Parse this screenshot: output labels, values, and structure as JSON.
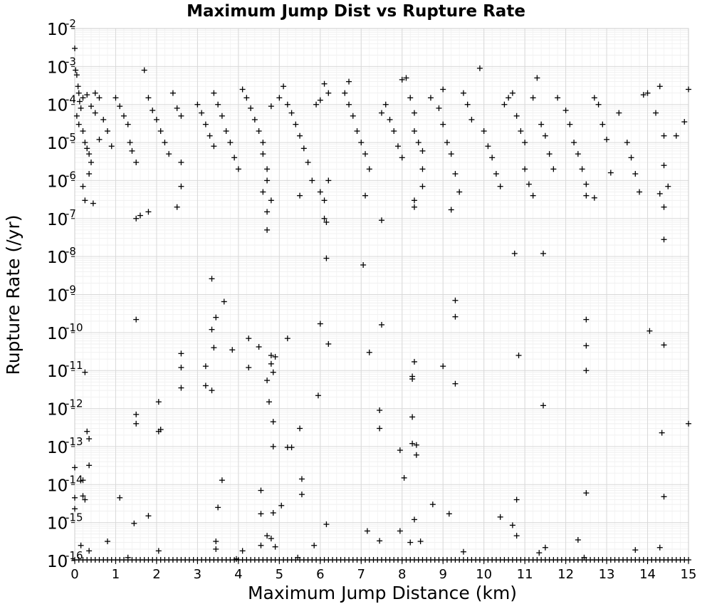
{
  "chart_data": {
    "type": "scatter",
    "title": "Maximum Jump Dist vs Rupture Rate",
    "xlabel": "Maximum Jump Distance (km)",
    "ylabel": "Rupture Rate (/yr)",
    "xlim": [
      0,
      15
    ],
    "ylim": [
      1e-16,
      0.01
    ],
    "yscale": "log",
    "grid": true,
    "legend": "none",
    "marker": "plus",
    "color": "#000000",
    "x_ticks": [
      0,
      1,
      2,
      3,
      4,
      5,
      6,
      7,
      8,
      9,
      10,
      11,
      12,
      13,
      14,
      15
    ],
    "y_ticks": [
      {
        "base": "10",
        "exp": "-16",
        "value": 1e-16
      },
      {
        "base": "10",
        "exp": "-15",
        "value": 1e-15
      },
      {
        "base": "10",
        "exp": "-14",
        "value": 1e-14
      },
      {
        "base": "10",
        "exp": "-13",
        "value": 1e-13
      },
      {
        "base": "10",
        "exp": "-12",
        "value": 1e-12
      },
      {
        "base": "10",
        "exp": "-11",
        "value": 1e-11
      },
      {
        "base": "10",
        "exp": "-10",
        "value": 1e-10
      },
      {
        "base": "10",
        "exp": "-9",
        "value": 1e-09
      },
      {
        "base": "10",
        "exp": "-8",
        "value": 1e-08
      },
      {
        "base": "10",
        "exp": "-7",
        "value": 1e-07
      },
      {
        "base": "10",
        "exp": "-6",
        "value": 1e-06
      },
      {
        "base": "10",
        "exp": "-5",
        "value": 1e-05
      },
      {
        "base": "10",
        "exp": "-4",
        "value": 0.0001
      },
      {
        "base": "10",
        "exp": "-3",
        "value": 0.001
      },
      {
        "base": "10",
        "exp": "-2",
        "value": 0.01
      }
    ],
    "points": [
      [
        0.0,
        0.003
      ],
      [
        0.02,
        0.0008
      ],
      [
        0.05,
        0.0006
      ],
      [
        0.08,
        0.0003
      ],
      [
        0.1,
        0.0002
      ],
      [
        0.12,
        0.00012
      ],
      [
        0.15,
        8e-05
      ],
      [
        0.05,
        5e-05
      ],
      [
        0.1,
        3e-05
      ],
      [
        0.2,
        2e-05
      ],
      [
        0.25,
        1e-05
      ],
      [
        0.3,
        7e-06
      ],
      [
        0.35,
        5e-06
      ],
      [
        0.4,
        3e-06
      ],
      [
        0.2,
        0.00015
      ],
      [
        0.3,
        0.00018
      ],
      [
        0.4,
        9e-05
      ],
      [
        0.5,
        6e-05
      ],
      [
        0.5,
        0.0002
      ],
      [
        0.6,
        0.00015
      ],
      [
        0.7,
        4e-05
      ],
      [
        0.8,
        2e-05
      ],
      [
        0.9,
        8e-06
      ],
      [
        0.6,
        1.2e-05
      ],
      [
        0.25,
        3e-07
      ],
      [
        0.45,
        2.5e-07
      ],
      [
        0.2,
        7e-07
      ],
      [
        0.35,
        1.5e-06
      ],
      [
        1.0,
        0.00015
      ],
      [
        1.1,
        9e-05
      ],
      [
        1.2,
        5e-05
      ],
      [
        1.3,
        3e-05
      ],
      [
        1.35,
        1e-05
      ],
      [
        1.4,
        6e-06
      ],
      [
        1.5,
        3e-06
      ],
      [
        1.5,
        1e-07
      ],
      [
        1.6,
        1.2e-07
      ],
      [
        1.7,
        0.0008
      ],
      [
        1.8,
        0.00015
      ],
      [
        1.9,
        7e-05
      ],
      [
        2.0,
        4e-05
      ],
      [
        2.1,
        2e-05
      ],
      [
        2.2,
        1e-05
      ],
      [
        2.3,
        5e-06
      ],
      [
        2.4,
        0.0002
      ],
      [
        2.5,
        8e-05
      ],
      [
        2.6,
        5e-05
      ],
      [
        2.6,
        3e-06
      ],
      [
        2.6,
        7e-07
      ],
      [
        2.5,
        2e-07
      ],
      [
        1.8,
        1.5e-07
      ],
      [
        3.0,
        0.0001
      ],
      [
        3.1,
        6e-05
      ],
      [
        3.2,
        3e-05
      ],
      [
        3.3,
        1.5e-05
      ],
      [
        3.4,
        8e-06
      ],
      [
        3.4,
        0.0002
      ],
      [
        3.5,
        0.0001
      ],
      [
        3.6,
        5e-05
      ],
      [
        3.7,
        2e-05
      ],
      [
        3.8,
        1e-05
      ],
      [
        3.9,
        4e-06
      ],
      [
        4.0,
        2e-06
      ],
      [
        4.1,
        0.00025
      ],
      [
        4.2,
        0.00015
      ],
      [
        4.3,
        8e-05
      ],
      [
        4.4,
        4e-05
      ],
      [
        4.5,
        2e-05
      ],
      [
        4.6,
        1e-05
      ],
      [
        4.6,
        5e-06
      ],
      [
        4.7,
        2e-06
      ],
      [
        4.7,
        1e-06
      ],
      [
        4.6,
        5e-07
      ],
      [
        4.7,
        1.5e-07
      ],
      [
        4.7,
        5e-08
      ],
      [
        4.8,
        3e-07
      ],
      [
        4.8,
        9e-05
      ],
      [
        5.0,
        0.00015
      ],
      [
        5.1,
        0.0003
      ],
      [
        5.2,
        0.0001
      ],
      [
        5.3,
        6e-05
      ],
      [
        5.4,
        3e-05
      ],
      [
        5.5,
        1.5e-05
      ],
      [
        5.6,
        7e-06
      ],
      [
        5.7,
        3e-06
      ],
      [
        5.8,
        1e-06
      ],
      [
        5.5,
        4e-07
      ],
      [
        5.9,
        0.0001
      ],
      [
        6.0,
        0.00013
      ],
      [
        6.1,
        0.00035
      ],
      [
        6.1,
        1e-07
      ],
      [
        6.15,
        8e-08
      ],
      [
        6.1,
        3e-07
      ],
      [
        6.0,
        5e-07
      ],
      [
        6.2,
        1e-06
      ],
      [
        6.2,
        0.0002
      ],
      [
        6.6,
        0.0002
      ],
      [
        6.7,
        0.0004
      ],
      [
        6.7,
        0.0001
      ],
      [
        6.8,
        5e-05
      ],
      [
        6.9,
        2e-05
      ],
      [
        7.0,
        1e-05
      ],
      [
        7.1,
        5e-06
      ],
      [
        7.2,
        2e-06
      ],
      [
        7.1,
        4e-07
      ],
      [
        7.5,
        9e-08
      ],
      [
        7.5,
        6e-05
      ],
      [
        7.6,
        0.0001
      ],
      [
        7.7,
        4e-05
      ],
      [
        7.8,
        2e-05
      ],
      [
        7.9,
        8e-06
      ],
      [
        8.0,
        4e-06
      ],
      [
        8.0,
        0.00045
      ],
      [
        8.1,
        0.0005
      ],
      [
        8.2,
        0.00015
      ],
      [
        8.3,
        6e-05
      ],
      [
        8.3,
        2e-05
      ],
      [
        8.4,
        1e-05
      ],
      [
        8.5,
        6e-06
      ],
      [
        8.5,
        2e-06
      ],
      [
        8.5,
        7e-07
      ],
      [
        8.3,
        3e-07
      ],
      [
        8.3,
        2e-07
      ],
      [
        8.7,
        0.00015
      ],
      [
        8.9,
        8e-05
      ],
      [
        9.0,
        3e-05
      ],
      [
        9.0,
        0.00025
      ],
      [
        9.1,
        1e-05
      ],
      [
        9.2,
        5e-06
      ],
      [
        9.3,
        1.5e-06
      ],
      [
        9.4,
        5e-07
      ],
      [
        9.2,
        1.7e-07
      ],
      [
        9.5,
        0.0002
      ],
      [
        9.6,
        0.0001
      ],
      [
        9.7,
        4e-05
      ],
      [
        9.9,
        0.0009
      ],
      [
        10.0,
        2e-05
      ],
      [
        10.1,
        8e-06
      ],
      [
        10.2,
        4e-06
      ],
      [
        10.3,
        1.5e-06
      ],
      [
        10.4,
        7e-07
      ],
      [
        10.5,
        0.0001
      ],
      [
        10.6,
        0.00015
      ],
      [
        10.7,
        0.0002
      ],
      [
        10.8,
        5e-05
      ],
      [
        10.9,
        2e-05
      ],
      [
        11.0,
        1e-05
      ],
      [
        11.0,
        2e-06
      ],
      [
        11.1,
        8e-07
      ],
      [
        11.2,
        4e-07
      ],
      [
        11.2,
        0.00015
      ],
      [
        11.3,
        0.0005
      ],
      [
        11.4,
        3e-05
      ],
      [
        11.5,
        1.5e-05
      ],
      [
        11.6,
        5e-06
      ],
      [
        11.7,
        2e-06
      ],
      [
        11.8,
        0.00015
      ],
      [
        12.0,
        7e-05
      ],
      [
        12.1,
        3e-05
      ],
      [
        12.2,
        1e-05
      ],
      [
        12.3,
        5e-06
      ],
      [
        12.4,
        2e-06
      ],
      [
        12.5,
        8e-07
      ],
      [
        12.5,
        4e-07
      ],
      [
        12.7,
        3.5e-07
      ],
      [
        12.7,
        0.00015
      ],
      [
        12.8,
        0.0001
      ],
      [
        12.9,
        3e-05
      ],
      [
        13.0,
        1.2e-05
      ],
      [
        13.1,
        1.6e-06
      ],
      [
        13.3,
        6e-05
      ],
      [
        13.5,
        1e-05
      ],
      [
        13.6,
        4e-06
      ],
      [
        13.7,
        1.5e-06
      ],
      [
        13.8,
        5e-07
      ],
      [
        13.9,
        0.00018
      ],
      [
        14.0,
        0.0002
      ],
      [
        14.2,
        6e-05
      ],
      [
        14.3,
        0.0003
      ],
      [
        14.4,
        1.5e-05
      ],
      [
        14.4,
        2.5e-06
      ],
      [
        14.4,
        2e-07
      ],
      [
        14.3,
        4.5e-07
      ],
      [
        14.5,
        7e-07
      ],
      [
        14.7,
        1.5e-05
      ],
      [
        14.9,
        3.5e-05
      ],
      [
        15.0,
        0.00025
      ],
      [
        6.15,
        9e-09
      ],
      [
        7.05,
        6e-09
      ],
      [
        10.75,
        1.2e-08
      ],
      [
        11.45,
        1.2e-08
      ],
      [
        14.4,
        2.8e-08
      ],
      [
        3.35,
        2.6e-09
      ],
      [
        3.65,
        6.5e-10
      ],
      [
        9.3,
        7e-10
      ],
      [
        1.5,
        2.2e-10
      ],
      [
        3.45,
        2.5e-10
      ],
      [
        9.3,
        2.6e-10
      ],
      [
        12.5,
        2.2e-10
      ],
      [
        3.35,
        1.2e-10
      ],
      [
        6.0,
        1.7e-10
      ],
      [
        7.5,
        1.6e-10
      ],
      [
        14.05,
        1.1e-10
      ],
      [
        5.2,
        7e-11
      ],
      [
        4.25,
        7e-11
      ],
      [
        6.2,
        5e-11
      ],
      [
        3.4,
        4e-11
      ],
      [
        3.85,
        3.5e-11
      ],
      [
        4.5,
        4.2e-11
      ],
      [
        12.5,
        4.5e-11
      ],
      [
        14.4,
        4.7e-11
      ],
      [
        2.6,
        2.8e-11
      ],
      [
        4.8,
        2.5e-11
      ],
      [
        4.9,
        2.3e-11
      ],
      [
        7.2,
        3e-11
      ],
      [
        10.85,
        2.5e-11
      ],
      [
        2.6,
        1.2e-11
      ],
      [
        3.2,
        1.3e-11
      ],
      [
        4.25,
        1.2e-11
      ],
      [
        4.8,
        1.5e-11
      ],
      [
        8.3,
        1.7e-11
      ],
      [
        9.0,
        1.3e-11
      ],
      [
        12.5,
        1e-11
      ],
      [
        0.25,
        9e-12
      ],
      [
        4.85,
        9e-12
      ],
      [
        8.25,
        7e-12
      ],
      [
        4.7,
        5.5e-12
      ],
      [
        8.25,
        6e-12
      ],
      [
        9.3,
        4.5e-12
      ],
      [
        2.6,
        3.5e-12
      ],
      [
        3.2,
        4e-12
      ],
      [
        3.35,
        3e-12
      ],
      [
        5.95,
        2.2e-12
      ],
      [
        2.05,
        1.5e-12
      ],
      [
        4.75,
        1.5e-12
      ],
      [
        11.45,
        1.2e-12
      ],
      [
        7.45,
        9e-13
      ],
      [
        1.5,
        7e-13
      ],
      [
        8.25,
        6e-13
      ],
      [
        1.5,
        4e-13
      ],
      [
        4.85,
        4.5e-13
      ],
      [
        15.0,
        4e-13
      ],
      [
        7.45,
        3e-13
      ],
      [
        0.3,
        2.5e-13
      ],
      [
        2.05,
        2.5e-13
      ],
      [
        2.1,
        2.8e-13
      ],
      [
        5.5,
        3e-13
      ],
      [
        14.35,
        2.3e-13
      ],
      [
        0.35,
        1.6e-13
      ],
      [
        4.85,
        1e-13
      ],
      [
        5.2,
        9.5e-14
      ],
      [
        5.3,
        9.5e-14
      ],
      [
        8.25,
        1.2e-13
      ],
      [
        8.35,
        1.1e-13
      ],
      [
        7.95,
        8e-14
      ],
      [
        8.35,
        6e-14
      ],
      [
        0.35,
        3.2e-14
      ],
      [
        0.0,
        2.8e-14
      ],
      [
        3.6,
        1.3e-14
      ],
      [
        5.55,
        1.4e-14
      ],
      [
        8.05,
        1.5e-14
      ],
      [
        0.2,
        1.3e-14
      ],
      [
        0.0,
        4.5e-15
      ],
      [
        0.2,
        5e-15
      ],
      [
        0.25,
        4e-15
      ],
      [
        1.1,
        4.5e-15
      ],
      [
        4.55,
        7e-15
      ],
      [
        5.55,
        5.5e-15
      ],
      [
        10.8,
        4e-15
      ],
      [
        12.5,
        6e-15
      ],
      [
        14.4,
        4.8e-15
      ],
      [
        3.5,
        2.5e-15
      ],
      [
        5.05,
        2.8e-15
      ],
      [
        8.75,
        3e-15
      ],
      [
        0.0,
        2.3e-15
      ],
      [
        1.8,
        1.5e-15
      ],
      [
        4.55,
        1.7e-15
      ],
      [
        4.85,
        1.8e-15
      ],
      [
        9.15,
        1.7e-15
      ],
      [
        10.4,
        1.4e-15
      ],
      [
        1.45,
        9.5e-16
      ],
      [
        6.15,
        9e-16
      ],
      [
        8.3,
        1.2e-15
      ],
      [
        10.7,
        8.5e-16
      ],
      [
        10.8,
        4.5e-16
      ],
      [
        0.15,
        2.5e-16
      ],
      [
        0.35,
        1.8e-16
      ],
      [
        0.8,
        3.2e-16
      ],
      [
        2.05,
        1.8e-16
      ],
      [
        3.45,
        3.2e-16
      ],
      [
        3.45,
        2e-16
      ],
      [
        4.1,
        1.8e-16
      ],
      [
        4.55,
        2.5e-16
      ],
      [
        4.7,
        4.5e-16
      ],
      [
        4.8,
        3.8e-16
      ],
      [
        4.9,
        2.3e-16
      ],
      [
        5.85,
        2.5e-16
      ],
      [
        7.15,
        6e-16
      ],
      [
        7.45,
        3.3e-16
      ],
      [
        7.95,
        6e-16
      ],
      [
        8.2,
        3e-16
      ],
      [
        8.45,
        3.2e-16
      ],
      [
        9.5,
        1.7e-16
      ],
      [
        11.35,
        1.6e-16
      ],
      [
        11.5,
        2.2e-16
      ],
      [
        12.3,
        3.5e-16
      ],
      [
        13.7,
        1.9e-16
      ],
      [
        14.3,
        2.2e-16
      ],
      [
        1.3,
        1.2e-16
      ],
      [
        3.95,
        1.1e-16
      ],
      [
        5.45,
        1.2e-16
      ],
      [
        12.45,
        1.2e-16
      ]
    ],
    "floor_points_x": [
      0.0,
      0.1,
      0.2,
      0.3,
      0.4,
      0.5,
      0.6,
      0.7,
      0.8,
      0.9,
      1.0,
      1.1,
      1.2,
      1.3,
      1.4,
      1.5,
      1.6,
      1.7,
      1.8,
      1.9,
      2.0,
      2.1,
      2.2,
      2.3,
      2.4,
      2.5,
      2.6,
      2.7,
      2.8,
      2.9,
      3.0,
      3.1,
      3.2,
      3.3,
      3.4,
      3.5,
      3.6,
      3.7,
      3.8,
      3.9,
      4.0,
      4.1,
      4.2,
      4.3,
      4.4,
      4.5,
      4.6,
      4.7,
      4.8,
      4.9,
      5.0,
      5.1,
      5.2,
      5.3,
      5.4,
      5.5,
      5.6,
      5.7,
      5.8,
      5.9,
      6.0,
      6.1,
      6.2,
      6.3,
      6.4,
      6.5,
      6.6,
      6.7,
      6.8,
      6.9,
      7.0,
      7.1,
      7.2,
      7.3,
      7.4,
      7.5,
      7.6,
      7.7,
      7.8,
      7.9,
      8.0,
      8.1,
      8.2,
      8.3,
      8.4,
      8.5,
      8.6,
      8.7,
      8.8,
      8.9,
      9.0,
      9.1,
      9.2,
      9.3,
      9.4,
      9.5,
      9.6,
      9.7,
      9.8,
      9.9,
      10.0,
      10.1,
      10.2,
      10.3,
      10.4,
      10.5,
      10.6,
      10.7,
      10.8,
      10.9,
      11.0,
      11.1,
      11.2,
      11.3,
      11.4,
      11.5,
      11.6,
      11.7,
      11.8,
      11.9,
      12.0,
      12.1,
      12.2,
      12.3,
      12.4,
      12.5,
      12.6,
      12.7,
      12.8,
      12.9,
      13.0,
      13.1,
      13.2,
      13.3,
      13.4,
      13.5,
      13.6,
      13.7,
      13.8,
      13.9,
      14.0,
      14.1,
      14.2,
      14.3,
      14.4,
      14.5,
      14.6,
      14.7,
      14.8,
      14.9,
      15.0
    ],
    "floor_value": 1e-16
  }
}
